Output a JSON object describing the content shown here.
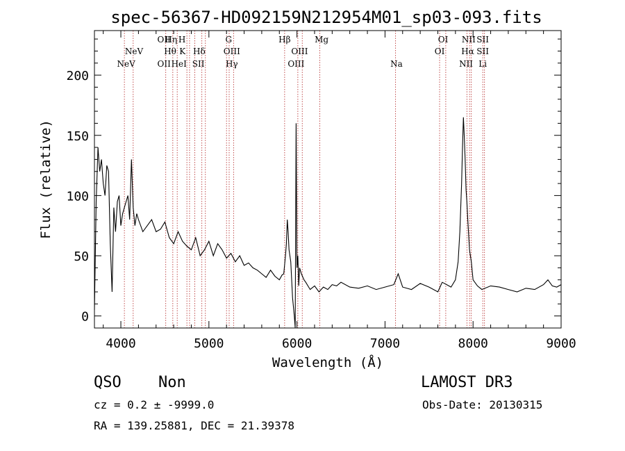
{
  "chart_data": {
    "type": "line",
    "title": "spec-56367-HD092159N212954M01_sp03-093.fits",
    "xlabel": "Wavelength (Å)",
    "ylabel": "Flux (relative)",
    "xlim": [
      3700,
      9000
    ],
    "ylim": [
      -10,
      237
    ],
    "x_ticks": [
      4000,
      5000,
      6000,
      7000,
      8000,
      9000
    ],
    "y_ticks": [
      0,
      50,
      100,
      150,
      200
    ],
    "grid": false,
    "spectrum": {
      "x": [
        3700,
        3720,
        3740,
        3760,
        3780,
        3800,
        3820,
        3840,
        3860,
        3880,
        3900,
        3920,
        3940,
        3960,
        3980,
        4000,
        4020,
        4040,
        4060,
        4080,
        4100,
        4120,
        4140,
        4160,
        4180,
        4200,
        4250,
        4300,
        4350,
        4400,
        4450,
        4500,
        4550,
        4600,
        4650,
        4700,
        4750,
        4800,
        4850,
        4900,
        4950,
        5000,
        5050,
        5100,
        5150,
        5200,
        5250,
        5300,
        5350,
        5400,
        5450,
        5500,
        5550,
        5600,
        5650,
        5700,
        5750,
        5800,
        5830,
        5850,
        5870,
        5880,
        5890,
        5900,
        5910,
        5930,
        5950,
        5970,
        5980,
        5990,
        6000,
        6010,
        6020,
        6030,
        6050,
        6080,
        6100,
        6150,
        6200,
        6250,
        6300,
        6350,
        6400,
        6450,
        6500,
        6600,
        6700,
        6800,
        6900,
        7000,
        7100,
        7150,
        7200,
        7300,
        7400,
        7500,
        7600,
        7650,
        7700,
        7750,
        7800,
        7830,
        7850,
        7870,
        7880,
        7890,
        7900,
        7910,
        7920,
        7930,
        7940,
        7960,
        7980,
        8000,
        8050,
        8100,
        8200,
        8300,
        8400,
        8500,
        8600,
        8700,
        8800,
        8850,
        8900,
        8950,
        9000
      ],
      "y": [
        5,
        95,
        140,
        120,
        130,
        110,
        100,
        125,
        120,
        60,
        20,
        90,
        70,
        95,
        100,
        75,
        85,
        90,
        95,
        100,
        80,
        130,
        90,
        75,
        85,
        80,
        70,
        75,
        80,
        70,
        72,
        78,
        65,
        60,
        70,
        62,
        58,
        55,
        65,
        50,
        55,
        62,
        50,
        60,
        55,
        48,
        52,
        45,
        50,
        42,
        44,
        40,
        38,
        35,
        32,
        38,
        33,
        30,
        34,
        35,
        50,
        60,
        80,
        70,
        55,
        45,
        15,
        0,
        -10,
        160,
        40,
        50,
        25,
        40,
        35,
        30,
        28,
        22,
        25,
        20,
        24,
        22,
        26,
        25,
        28,
        24,
        23,
        25,
        22,
        24,
        26,
        35,
        24,
        22,
        27,
        24,
        20,
        28,
        26,
        24,
        30,
        45,
        70,
        110,
        140,
        165,
        150,
        130,
        105,
        95,
        80,
        55,
        45,
        30,
        25,
        22,
        25,
        24,
        22,
        20,
        23,
        22,
        26,
        30,
        25,
        24,
        26
      ]
    },
    "line_markers": [
      {
        "label": "NeV",
        "wavelength": 4060,
        "row": 3
      },
      {
        "label": "NeV",
        "wavelength": 4150,
        "row": 2
      },
      {
        "label": "OII",
        "wavelength": 4490,
        "row": 1
      },
      {
        "label": "OII",
        "wavelength": 4490,
        "row": 3
      },
      {
        "label": "Hη",
        "wavelength": 4570,
        "row": 1
      },
      {
        "label": "Hθ",
        "wavelength": 4560,
        "row": 2
      },
      {
        "label": "HeI",
        "wavelength": 4660,
        "row": 3
      },
      {
        "label": "H",
        "wavelength": 4695,
        "row": 1
      },
      {
        "label": "K",
        "wavelength": 4700,
        "row": 2
      },
      {
        "label": "Hδ",
        "wavelength": 4890,
        "row": 2
      },
      {
        "label": "SII",
        "wavelength": 4880,
        "row": 3
      },
      {
        "label": "G",
        "wavelength": 5225,
        "row": 1
      },
      {
        "label": "OIII",
        "wavelength": 5260,
        "row": 2
      },
      {
        "label": "Hγ",
        "wavelength": 5260,
        "row": 3
      },
      {
        "label": "Hβ",
        "wavelength": 5860,
        "row": 1
      },
      {
        "label": "OIII",
        "wavelength": 6030,
        "row": 2
      },
      {
        "label": "OIII",
        "wavelength": 5990,
        "row": 3
      },
      {
        "label": "Mg",
        "wavelength": 6280,
        "row": 1
      },
      {
        "label": "Na",
        "wavelength": 7130,
        "row": 3
      },
      {
        "label": "OI",
        "wavelength": 7660,
        "row": 1
      },
      {
        "label": "OI",
        "wavelength": 7620,
        "row": 2
      },
      {
        "label": "NII",
        "wavelength": 7950,
        "row": 1
      },
      {
        "label": "Hα",
        "wavelength": 7940,
        "row": 2
      },
      {
        "label": "NII",
        "wavelength": 7920,
        "row": 3
      },
      {
        "label": "SII",
        "wavelength": 8110,
        "row": 1
      },
      {
        "label": "SII",
        "wavelength": 8110,
        "row": 2
      },
      {
        "label": "Li",
        "wavelength": 8110,
        "row": 3
      }
    ],
    "marker_lines": [
      4040,
      4140,
      4510,
      4590,
      4640,
      4750,
      4780,
      4840,
      4920,
      4960,
      5200,
      5230,
      5280,
      5860,
      6010,
      6060,
      6260,
      7120,
      7620,
      7690,
      7930,
      7960,
      7980,
      8110,
      8130
    ]
  },
  "info": {
    "class_label": "QSO",
    "subclass": "Non",
    "survey": "LAMOST DR3",
    "cz": "cz = 0.2 ± -9999.0",
    "obs_date": "Obs-Date: 20130315",
    "coords": "RA = 139.25881, DEC =  21.39378"
  }
}
